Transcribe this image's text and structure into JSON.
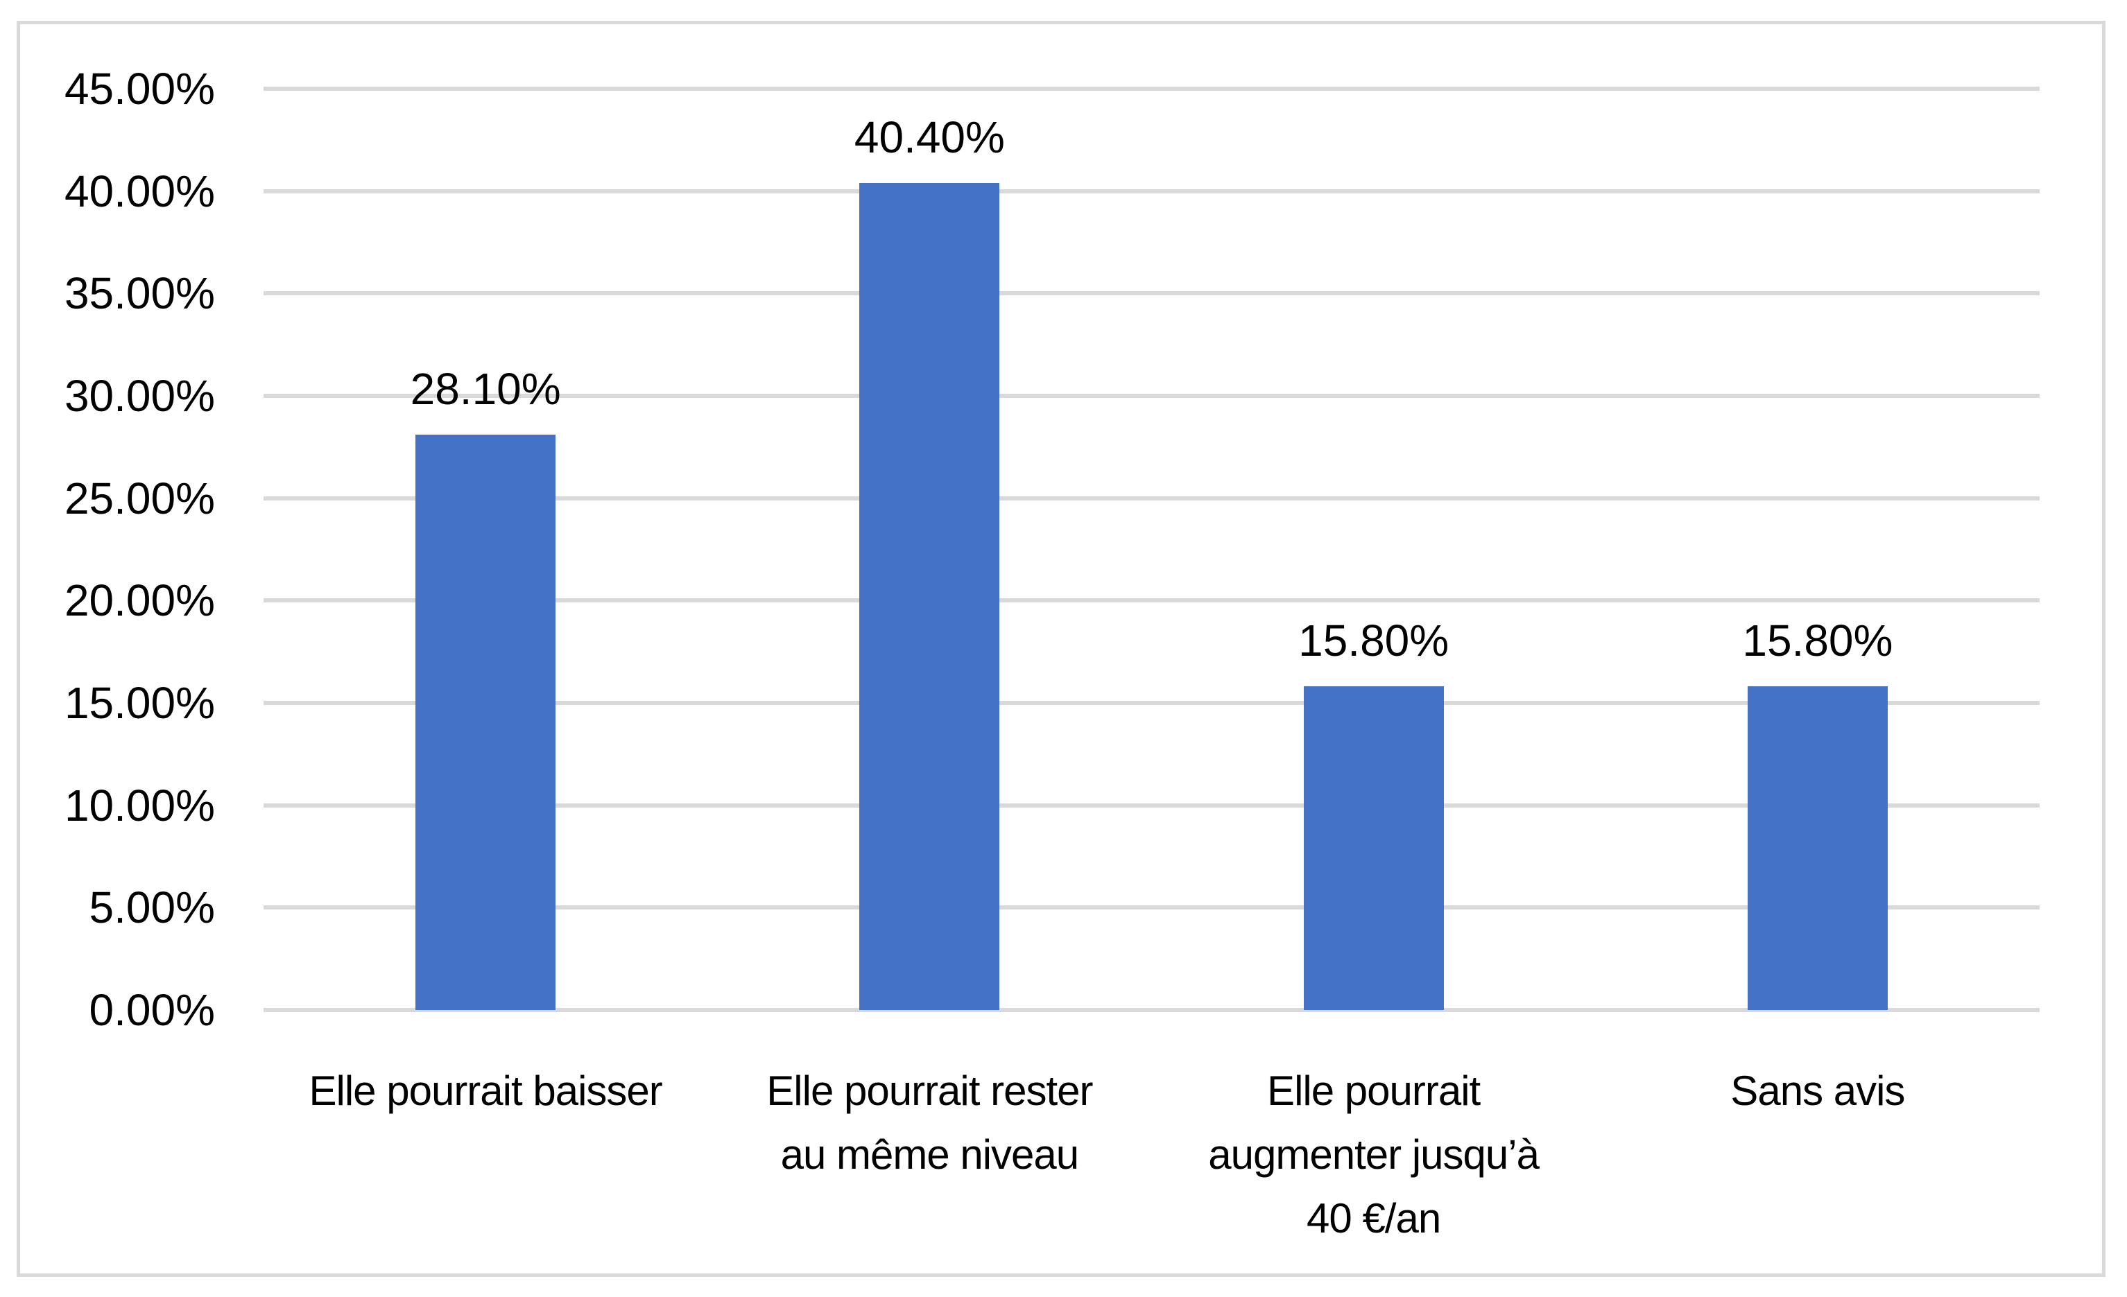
{
  "chart": {
    "background_color": "#ffffff",
    "frame_border_color": "#d9d9d9",
    "gridline_color": "#d9d9d9",
    "bar_color": "#4472c4",
    "text_color": "#000000"
  },
  "chart_data": {
    "type": "bar",
    "title": "",
    "xlabel": "",
    "ylabel": "",
    "categories": [
      "Elle pourrait baisser",
      "Elle pourrait rester au même niveau",
      "Elle pourrait augmenter jusqu’à 40 €/an",
      "Sans avis"
    ],
    "category_lines": [
      [
        "Elle pourrait baisser"
      ],
      [
        "Elle pourrait rester",
        "au même niveau"
      ],
      [
        "Elle pourrait",
        "augmenter jusqu’à",
        "40 €/an"
      ],
      [
        "Sans avis"
      ]
    ],
    "values": [
      28.1,
      40.4,
      15.8,
      15.8
    ],
    "data_labels": [
      "28.10%",
      "40.40%",
      "15.80%",
      "15.80%"
    ],
    "ylim": [
      0,
      45
    ],
    "ytick_step": 5,
    "yticks": [
      "0.00%",
      "5.00%",
      "10.00%",
      "15.00%",
      "20.00%",
      "25.00%",
      "30.00%",
      "35.00%",
      "40.00%",
      "45.00%"
    ],
    "grid": true,
    "legend": "none"
  }
}
